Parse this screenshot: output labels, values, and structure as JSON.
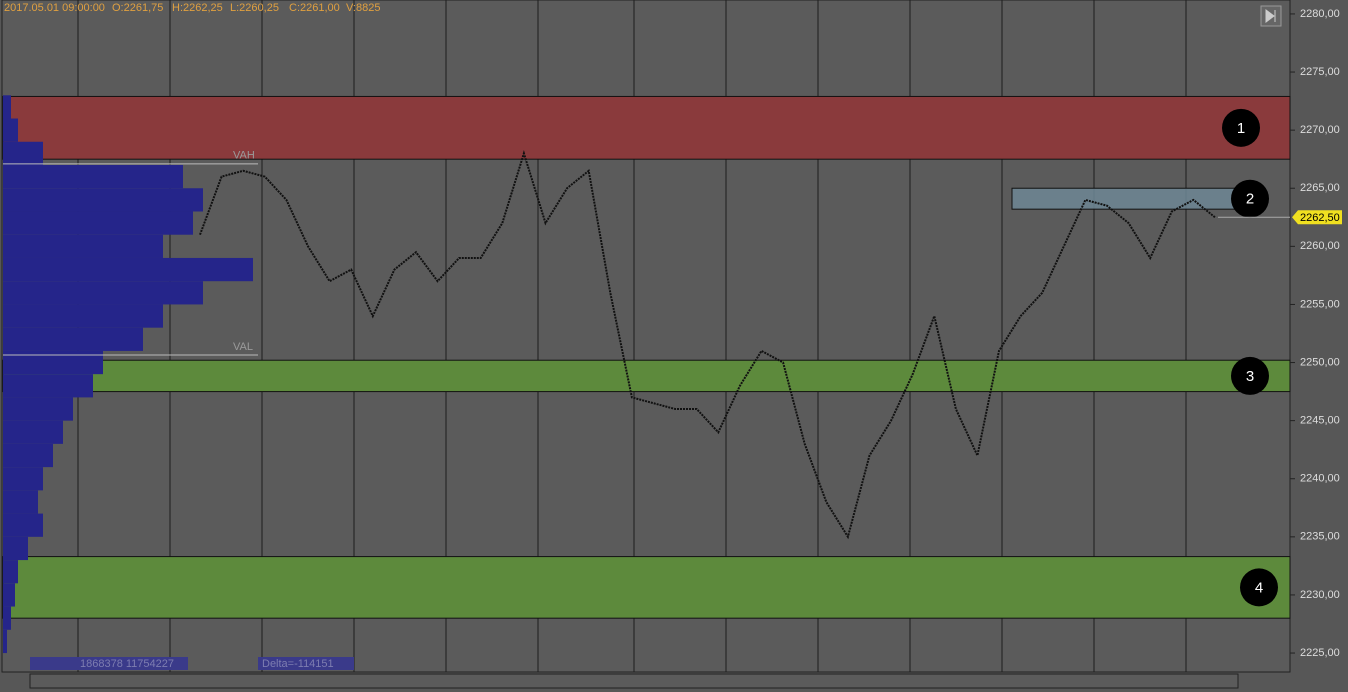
{
  "chart_data": {
    "type": "price-chart",
    "header": {
      "time": "2017.05.01 09:00:00",
      "open": "O:2261,75",
      "high": "H:2262,25",
      "low": "L:2260,25",
      "close": "C:2261,00",
      "volume": "V:8825"
    },
    "ylim": [
      2223.54,
      2281.2
    ],
    "yticks": [
      {
        "value": 2280,
        "label": "2280,00"
      },
      {
        "value": 2275,
        "label": "2275,00"
      },
      {
        "value": 2270,
        "label": "2270,00"
      },
      {
        "value": 2265,
        "label": "2265,00"
      },
      {
        "value": 2260,
        "label": "2260,00"
      },
      {
        "value": 2255,
        "label": "2255,00"
      },
      {
        "value": 2250,
        "label": "2250,00"
      },
      {
        "value": 2245,
        "label": "2245,00"
      },
      {
        "value": 2240,
        "label": "2240,00"
      },
      {
        "value": 2235,
        "label": "2235,00"
      },
      {
        "value": 2230,
        "label": "2230,00"
      },
      {
        "value": 2225,
        "label": "2225,00"
      }
    ],
    "last_price": {
      "value": 2262.5,
      "label": "2262,50"
    },
    "value_area": {
      "vah": 2267.1,
      "vah_label": "VAH",
      "val": 2250.65,
      "val_label": "VAL"
    },
    "zones": [
      {
        "label": "1",
        "top": 2272.9,
        "bottom": 2267.5,
        "color": "#8a3a3c"
      },
      {
        "label": "2",
        "top": 2265.0,
        "bottom": 2263.2,
        "color": "#6e8795"
      },
      {
        "label": "3",
        "top": 2250.2,
        "bottom": 2247.5,
        "color": "#5d8a3c"
      },
      {
        "label": "4",
        "top": 2233.3,
        "bottom": 2228.0,
        "color": "#5d8a3c"
      }
    ],
    "series": [
      {
        "name": "Price",
        "color": "#111111",
        "values": [
          2261,
          2266,
          2266.5,
          2266,
          2264,
          2260,
          2257,
          2258,
          2254,
          2258,
          2259.5,
          2257,
          2259,
          2259,
          2262,
          2268,
          2262,
          2265,
          2266.5,
          2256,
          2247,
          2246.5,
          2246,
          2246,
          2244,
          2248,
          2251,
          2250,
          2243,
          2238,
          2235,
          2242,
          2245,
          2249,
          2254,
          2246,
          2242,
          2251,
          2254,
          2256,
          2260,
          2264,
          2263.5,
          2262,
          2259,
          2263,
          2264,
          2262.5
        ]
      }
    ],
    "profile": {
      "color": "#25258a",
      "prices": [
        2272,
        2270,
        2268,
        2266,
        2264,
        2262,
        2260,
        2258,
        2256,
        2254,
        2252,
        2250,
        2248,
        2246,
        2244,
        2242,
        2240,
        2238,
        2236,
        2234,
        2232,
        2230,
        2228,
        2226
      ],
      "values": [
        8,
        15,
        40,
        180,
        200,
        190,
        160,
        250,
        200,
        160,
        140,
        100,
        90,
        70,
        60,
        50,
        40,
        35,
        40,
        25,
        15,
        12,
        8,
        4
      ]
    },
    "footer": {
      "volume": "1868378 11754227",
      "delta": "Delta=-114151"
    }
  }
}
